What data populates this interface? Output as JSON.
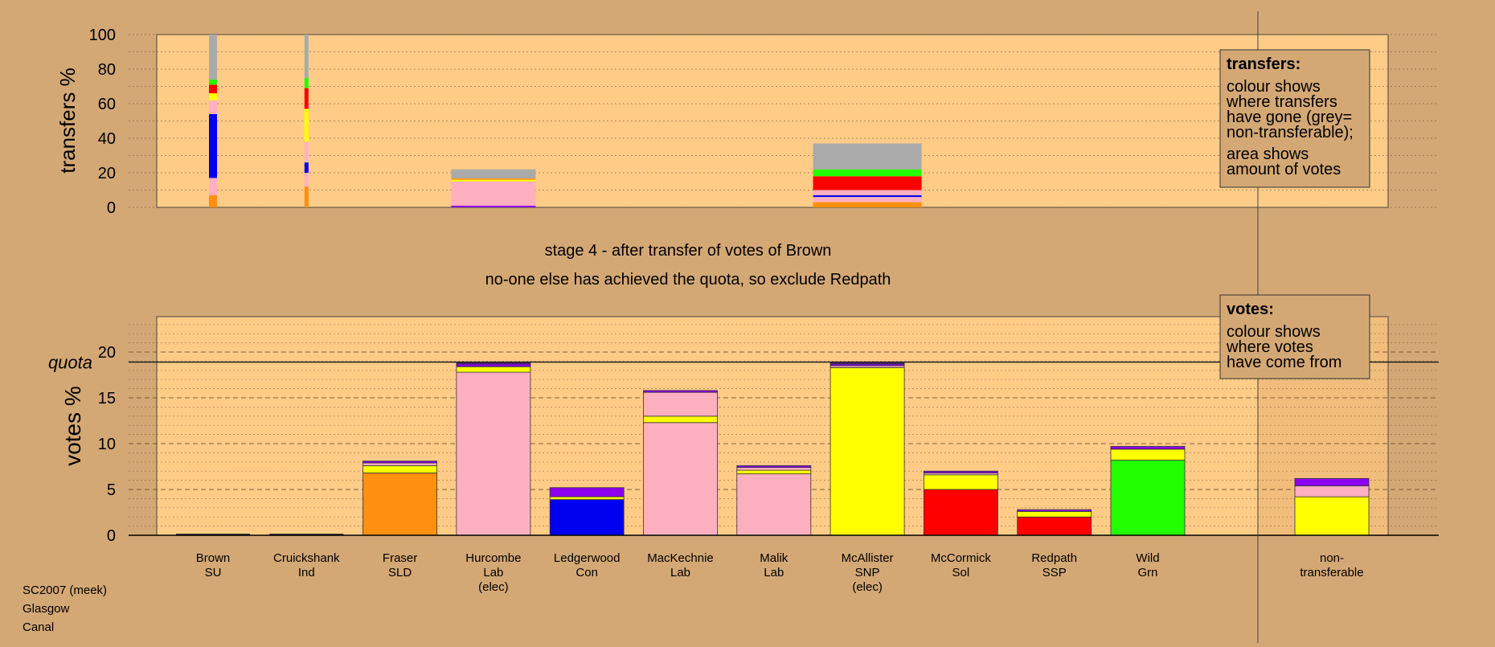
{
  "meta": {
    "line1": "SC2007 (meek)",
    "line2": "Glasgow",
    "line3": "Canal"
  },
  "stage_title": "stage 4 - after transfer of votes of Brown",
  "stage_subtitle": "no-one else has achieved the quota, so exclude Redpath",
  "transfers_legend": {
    "title": "transfers:",
    "lines": [
      "colour shows",
      "where transfers",
      "have gone (grey=",
      "non-transferable);",
      "area shows",
      "amount of votes"
    ]
  },
  "votes_legend": {
    "title": "votes:",
    "lines": [
      "colour shows",
      "where votes",
      "have come from"
    ]
  },
  "colors": {
    "Grn": "#22ff00",
    "SSP": "#ff0000",
    "Sol": "#ff0000",
    "SNP": "#ffff00",
    "Lab": "#ffb0c0",
    "Con": "#0000ee",
    "SLD": "#ff9010",
    "SU": "#8b00ee",
    "Ind": "#551a8b",
    "Other": "#aaaaaa",
    "nontransferable": "#aaaaaa",
    "plot_bg": "#ffcc88",
    "page_bg": "#d4a875"
  },
  "chart_data": [
    {
      "type": "bar",
      "stacked": true,
      "name": "transfers",
      "ylabel": "transfers %",
      "ylim": [
        0,
        100
      ],
      "yticks": [
        0,
        20,
        40,
        60,
        80,
        100
      ],
      "candidates": [
        "Brown",
        "Cruickshank",
        "Hurcombe",
        "McAllister"
      ],
      "series": [
        {
          "candidate": "Brown",
          "segments": [
            {
              "party": "SLD",
              "value": 7
            },
            {
              "party": "Lab",
              "value": 10
            },
            {
              "party": "Con",
              "value": 37
            },
            {
              "party": "Lab",
              "value": 8
            },
            {
              "party": "SNP",
              "value": 4
            },
            {
              "party": "Sol",
              "value": 5
            },
            {
              "party": "Grn",
              "value": 3
            },
            {
              "party": "nontransferable",
              "value": 26
            }
          ]
        },
        {
          "candidate": "Cruickshank",
          "segments": [
            {
              "party": "SLD",
              "value": 12
            },
            {
              "party": "Lab",
              "value": 8
            },
            {
              "party": "Con",
              "value": 6
            },
            {
              "party": "Lab",
              "value": 12
            },
            {
              "party": "SNP",
              "value": 19
            },
            {
              "party": "Sol",
              "value": 12
            },
            {
              "party": "Grn",
              "value": 6
            },
            {
              "party": "nontransferable",
              "value": 25
            }
          ]
        },
        {
          "candidate": "Hurcombe",
          "segments": [
            {
              "party": "SU",
              "value": 1
            },
            {
              "party": "Lab",
              "value": 14
            },
            {
              "party": "SNP",
              "value": 1
            },
            {
              "party": "SLD",
              "value": 0.8
            },
            {
              "party": "nontransferable",
              "value": 5.2
            }
          ]
        },
        {
          "candidate": "McAllister",
          "segments": [
            {
              "party": "SLD",
              "value": 3
            },
            {
              "party": "Lab",
              "value": 3
            },
            {
              "party": "Con",
              "value": 1
            },
            {
              "party": "Lab",
              "value": 3
            },
            {
              "party": "Sol",
              "value": 8
            },
            {
              "party": "Grn",
              "value": 4
            },
            {
              "party": "nontransferable",
              "value": 15
            }
          ]
        }
      ]
    },
    {
      "type": "bar",
      "stacked": true,
      "name": "votes",
      "ylabel": "votes %",
      "ylim": [
        0,
        24
      ],
      "yticks": [
        0,
        5,
        10,
        15,
        20
      ],
      "quota": 18.9,
      "quota_label": "quota",
      "candidates": [
        {
          "name": "Brown",
          "party": "SU",
          "elected": false,
          "segments": []
        },
        {
          "name": "Cruickshank",
          "party": "Ind",
          "elected": false,
          "segments": []
        },
        {
          "name": "Fraser",
          "party": "SLD",
          "elected": false,
          "segments": [
            {
              "party": "SLD",
              "value": 6.8
            },
            {
              "party": "SNP",
              "value": 0.8
            },
            {
              "party": "Lab",
              "value": 0.3
            },
            {
              "party": "SU",
              "value": 0.2
            }
          ]
        },
        {
          "name": "Hurcombe",
          "party": "Lab",
          "label3": "(elec)",
          "elected": true,
          "segments": [
            {
              "party": "Lab",
              "value": 17.8
            },
            {
              "party": "SNP",
              "value": 0.6
            },
            {
              "party": "SU",
              "value": 0.3
            },
            {
              "party": "Ind",
              "value": 0.2
            }
          ]
        },
        {
          "name": "Ledgerwood",
          "party": "Con",
          "elected": false,
          "segments": [
            {
              "party": "Con",
              "value": 3.9
            },
            {
              "party": "SNP",
              "value": 0.3
            },
            {
              "party": "SU",
              "value": 1.0
            }
          ]
        },
        {
          "name": "MacKechnie",
          "party": "Lab",
          "elected": false,
          "segments": [
            {
              "party": "Lab",
              "value": 12.3
            },
            {
              "party": "SNP",
              "value": 0.7
            },
            {
              "party": "Lab",
              "value": 2.6
            },
            {
              "party": "SU",
              "value": 0.2
            }
          ]
        },
        {
          "name": "Malik",
          "party": "Lab",
          "elected": false,
          "segments": [
            {
              "party": "Lab",
              "value": 6.7
            },
            {
              "party": "SNP",
              "value": 0.4
            },
            {
              "party": "Lab",
              "value": 0.3
            },
            {
              "party": "SU",
              "value": 0.2
            }
          ]
        },
        {
          "name": "McAllister",
          "party": "SNP",
          "label3": "(elec)",
          "elected": true,
          "segments": [
            {
              "party": "SNP",
              "value": 18.3
            },
            {
              "party": "Lab",
              "value": 0.2
            },
            {
              "party": "SU",
              "value": 0.2
            },
            {
              "party": "Ind",
              "value": 0.2
            }
          ]
        },
        {
          "name": "McCormick",
          "party": "Sol",
          "elected": false,
          "segments": [
            {
              "party": "Sol",
              "value": 5.0
            },
            {
              "party": "SNP",
              "value": 1.6
            },
            {
              "party": "Lab",
              "value": 0.2
            },
            {
              "party": "SU",
              "value": 0.2
            }
          ]
        },
        {
          "name": "Redpath",
          "party": "SSP",
          "elected": false,
          "segments": [
            {
              "party": "SSP",
              "value": 2.0
            },
            {
              "party": "SNP",
              "value": 0.6
            },
            {
              "party": "SU",
              "value": 0.2
            }
          ]
        },
        {
          "name": "Wild",
          "party": "Grn",
          "elected": false,
          "segments": [
            {
              "party": "Grn",
              "value": 8.2
            },
            {
              "party": "SNP",
              "value": 1.2
            },
            {
              "party": "SU",
              "value": 0.3
            }
          ]
        },
        {
          "name": "non-",
          "party": "transferable",
          "elected": false,
          "nontransferable": true,
          "segments": [
            {
              "party": "SNP",
              "value": 4.2
            },
            {
              "party": "Lab",
              "value": 1.2
            },
            {
              "party": "SU",
              "value": 0.8
            }
          ]
        }
      ]
    }
  ]
}
